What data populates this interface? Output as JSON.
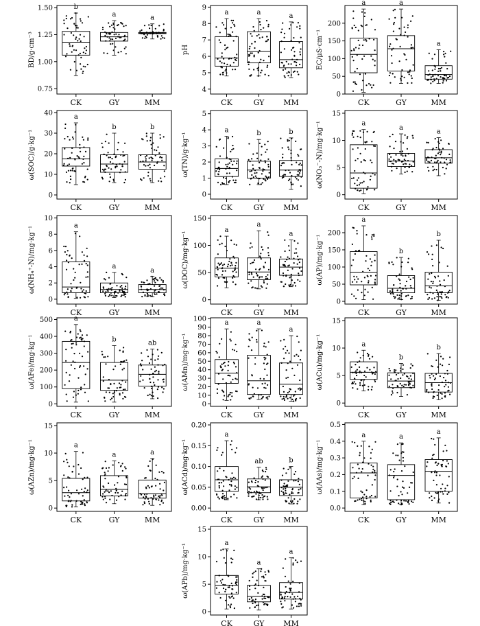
{
  "chart_data": [
    {
      "type": "box",
      "ylabel": "BD/g·cm⁻³",
      "ylim": [
        0.7,
        1.52
      ],
      "yticks": [
        0.75,
        1.0,
        1.25,
        1.5
      ],
      "tick_decimals": 2,
      "categories": [
        "CK",
        "GY",
        "MM"
      ],
      "boxes": [
        {
          "min": 0.87,
          "q1": 1.06,
          "median": 1.18,
          "q3": 1.28,
          "max": 1.45,
          "letter": "b"
        },
        {
          "min": 1.06,
          "q1": 1.19,
          "median": 1.23,
          "q3": 1.27,
          "max": 1.38,
          "letter": "a"
        },
        {
          "min": 1.21,
          "q1": 1.26,
          "median": 1.265,
          "q3": 1.27,
          "max": 1.35,
          "letter": "a"
        }
      ]
    },
    {
      "type": "box",
      "ylabel": "pH",
      "ylim": [
        3.7,
        9.1
      ],
      "yticks": [
        4,
        5,
        6,
        7,
        8,
        9
      ],
      "tick_decimals": 0,
      "categories": [
        "CK",
        "GY",
        "MM"
      ],
      "boxes": [
        {
          "min": 4.8,
          "q1": 5.4,
          "median": 5.9,
          "q3": 7.2,
          "max": 8.3,
          "letter": "a"
        },
        {
          "min": 4.8,
          "q1": 5.6,
          "median": 6.3,
          "q3": 7.5,
          "max": 8.3,
          "letter": "a"
        },
        {
          "min": 4.7,
          "q1": 5.3,
          "median": 5.8,
          "q3": 6.9,
          "max": 8.1,
          "letter": "a"
        }
      ]
    },
    {
      "type": "box",
      "ylabel": "EC/μS·cm⁻¹",
      "ylim": [
        0,
        250
      ],
      "yticks": [
        0,
        50,
        100,
        150,
        200
      ],
      "tick_decimals": 0,
      "categories": [
        "CK",
        "GY",
        "MM"
      ],
      "boxes": [
        {
          "min": 5,
          "q1": 60,
          "median": 112,
          "q3": 158,
          "max": 240,
          "letter": "a"
        },
        {
          "min": 30,
          "q1": 65,
          "median": 128,
          "q3": 165,
          "max": 240,
          "letter": "a"
        },
        {
          "min": 30,
          "q1": 42,
          "median": 55,
          "q3": 80,
          "max": 125,
          "letter": "a"
        }
      ]
    },
    {
      "type": "box",
      "ylabel": "ω(SOC)/g·kg⁻¹",
      "ylim": [
        -2,
        41
      ],
      "yticks": [
        0,
        10,
        20,
        30,
        40
      ],
      "tick_decimals": 0,
      "categories": [
        "CK",
        "GY",
        "MM"
      ],
      "boxes": [
        {
          "min": 5,
          "q1": 14,
          "median": 17.5,
          "q3": 23,
          "max": 35,
          "letter": "a"
        },
        {
          "min": 6,
          "q1": 11,
          "median": 15,
          "q3": 19.5,
          "max": 30,
          "letter": "b"
        },
        {
          "min": 6,
          "q1": 12.5,
          "median": 16,
          "q3": 19.5,
          "max": 30,
          "letter": "b"
        }
      ]
    },
    {
      "type": "box",
      "ylabel": "ω(TN)/g·kg⁻¹",
      "ylim": [
        -0.3,
        5.2
      ],
      "yticks": [
        0,
        1,
        2,
        3,
        4,
        5
      ],
      "tick_decimals": 0,
      "categories": [
        "CK",
        "GY",
        "MM"
      ],
      "boxes": [
        {
          "min": 0.6,
          "q1": 1.1,
          "median": 1.6,
          "q3": 2.2,
          "max": 3.6,
          "letter": "a"
        },
        {
          "min": 0.6,
          "q1": 1.0,
          "median": 1.5,
          "q3": 2.05,
          "max": 3.4,
          "letter": "b"
        },
        {
          "min": 0.3,
          "q1": 1.1,
          "median": 1.5,
          "q3": 2.1,
          "max": 3.5,
          "letter": "b"
        }
      ]
    },
    {
      "type": "box",
      "ylabel": "ω(NO₃⁻-N)/mg·kg⁻¹",
      "ylim": [
        -0.8,
        15.5
      ],
      "yticks": [
        0,
        5,
        10,
        15
      ],
      "tick_decimals": 0,
      "categories": [
        "CK",
        "GY",
        "MM"
      ],
      "boxes": [
        {
          "min": 0.2,
          "q1": 1.2,
          "median": 4,
          "q3": 9.2,
          "max": 12,
          "letter": "a"
        },
        {
          "min": 3.8,
          "q1": 5.2,
          "median": 6.2,
          "q3": 7.6,
          "max": 11.2,
          "letter": "a"
        },
        {
          "min": 3.5,
          "q1": 5.8,
          "median": 6.8,
          "q3": 8.3,
          "max": 10.5,
          "letter": "a"
        }
      ]
    },
    {
      "type": "box",
      "ylabel": "ω(NH₄⁺-N)/mg·kg⁻¹",
      "ylim": [
        -0.6,
        10.3
      ],
      "yticks": [
        0,
        2,
        4,
        6,
        8,
        10
      ],
      "tick_decimals": 0,
      "categories": [
        "CK",
        "GY",
        "MM"
      ],
      "boxes": [
        {
          "min": 0.1,
          "q1": 0.8,
          "median": 1.5,
          "q3": 4.6,
          "max": 8.3,
          "letter": "a"
        },
        {
          "min": 0.2,
          "q1": 0.8,
          "median": 1.2,
          "q3": 2.0,
          "max": 3.3,
          "letter": "a"
        },
        {
          "min": 0.3,
          "q1": 0.8,
          "median": 1.2,
          "q3": 1.8,
          "max": 2.8,
          "letter": "a"
        }
      ]
    },
    {
      "type": "box",
      "ylabel": "ω(DOC)/mg·kg⁻¹",
      "ylim": [
        -8,
        155
      ],
      "yticks": [
        0,
        50,
        100,
        150
      ],
      "tick_decimals": 0,
      "categories": [
        "CK",
        "GY",
        "MM"
      ],
      "boxes": [
        {
          "min": 22,
          "q1": 42,
          "median": 58,
          "q3": 77,
          "max": 117,
          "letter": "a"
        },
        {
          "min": 20,
          "q1": 37,
          "median": 51,
          "q3": 77,
          "max": 127,
          "letter": "a"
        },
        {
          "min": 24,
          "q1": 45,
          "median": 60,
          "q3": 75,
          "max": 110,
          "letter": "a"
        }
      ]
    },
    {
      "type": "box",
      "ylabel": "ω(AP)/mg·kg⁻¹",
      "ylim": [
        -8,
        250
      ],
      "yticks": [
        0,
        50,
        100,
        150,
        200
      ],
      "tick_decimals": 0,
      "categories": [
        "CK",
        "GY",
        "MM"
      ],
      "boxes": [
        {
          "min": 5,
          "q1": 48,
          "median": 85,
          "q3": 145,
          "max": 220,
          "letter": "a"
        },
        {
          "min": 5,
          "q1": 25,
          "median": 38,
          "q3": 75,
          "max": 128,
          "letter": "b"
        },
        {
          "min": 3,
          "q1": 25,
          "median": 45,
          "q3": 85,
          "max": 178,
          "letter": "b"
        }
      ]
    },
    {
      "type": "box",
      "ylabel": "ω(AFe)/mg·kg⁻¹",
      "ylim": [
        -15,
        510
      ],
      "yticks": [
        0,
        100,
        200,
        300,
        400,
        500
      ],
      "tick_decimals": 0,
      "categories": [
        "CK",
        "GY",
        "MM"
      ],
      "boxes": [
        {
          "min": 10,
          "q1": 90,
          "median": 245,
          "q3": 370,
          "max": 470,
          "letter": "a"
        },
        {
          "min": 10,
          "q1": 80,
          "median": 140,
          "q3": 245,
          "max": 345,
          "letter": "b"
        },
        {
          "min": 30,
          "q1": 105,
          "median": 175,
          "q3": 230,
          "max": 325,
          "letter": "ab"
        }
      ]
    },
    {
      "type": "box",
      "ylabel": "ω(AMn)/mg·kg⁻¹",
      "ylim": [
        -3,
        101
      ],
      "yticks": [
        0,
        10,
        20,
        30,
        40,
        50,
        60,
        70,
        80,
        90,
        100
      ],
      "tick_decimals": 0,
      "categories": [
        "CK",
        "GY",
        "MM"
      ],
      "boxes": [
        {
          "min": 4,
          "q1": 24,
          "median": 36,
          "q3": 52,
          "max": 88,
          "letter": "a"
        },
        {
          "min": 5,
          "q1": 11,
          "median": 27,
          "q3": 57,
          "max": 88,
          "letter": "a"
        },
        {
          "min": 3,
          "q1": 11,
          "median": 23,
          "q3": 48,
          "max": 80,
          "letter": "a"
        }
      ]
    },
    {
      "type": "box",
      "ylabel": "ω(ACu)/mg·kg⁻¹",
      "ylim": [
        -0.6,
        15.5
      ],
      "yticks": [
        0,
        5,
        10,
        15
      ],
      "tick_decimals": 0,
      "categories": [
        "CK",
        "GY",
        "MM"
      ],
      "boxes": [
        {
          "min": 2.2,
          "q1": 4.3,
          "median": 5.6,
          "q3": 7.5,
          "max": 9.6,
          "letter": "a"
        },
        {
          "min": 1.2,
          "q1": 2.8,
          "median": 4.0,
          "q3": 5.5,
          "max": 7.2,
          "letter": "b"
        },
        {
          "min": 0.6,
          "q1": 2.0,
          "median": 3.7,
          "q3": 5.4,
          "max": 9.0,
          "letter": "b"
        }
      ]
    },
    {
      "type": "box",
      "ylabel": "ω(AZn)/mg·kg⁻¹",
      "ylim": [
        -0.6,
        15.5
      ],
      "yticks": [
        0,
        5,
        10,
        15
      ],
      "tick_decimals": 0,
      "categories": [
        "CK",
        "GY",
        "MM"
      ],
      "boxes": [
        {
          "min": 0.2,
          "q1": 1.3,
          "median": 2.8,
          "q3": 5.4,
          "max": 10.3,
          "letter": "a"
        },
        {
          "min": 0.8,
          "q1": 2.2,
          "median": 3.4,
          "q3": 5.9,
          "max": 8.6,
          "letter": "a"
        },
        {
          "min": 0.5,
          "q1": 1.8,
          "median": 2.6,
          "q3": 5.1,
          "max": 9.0,
          "letter": "a"
        }
      ]
    },
    {
      "type": "box",
      "ylabel": "ω(ACd)/mg·kg⁻¹",
      "ylim": [
        -0.008,
        0.205
      ],
      "yticks": [
        0,
        0.05,
        0.1,
        0.15,
        0.2
      ],
      "tick_decimals": 2,
      "categories": [
        "CK",
        "GY",
        "MM"
      ],
      "boxes": [
        {
          "min": 0.02,
          "q1": 0.04,
          "median": 0.068,
          "q3": 0.1,
          "max": 0.162,
          "letter": "a"
        },
        {
          "min": 0.02,
          "q1": 0.037,
          "median": 0.051,
          "q3": 0.07,
          "max": 0.098,
          "letter": "ab"
        },
        {
          "min": 0.01,
          "q1": 0.03,
          "median": 0.05,
          "q3": 0.068,
          "max": 0.1,
          "letter": "b"
        }
      ]
    },
    {
      "type": "box",
      "ylabel": "ω(AAs)/mg·kg⁻¹",
      "ylim": [
        -0.02,
        0.51
      ],
      "yticks": [
        0,
        0.1,
        0.2,
        0.3,
        0.4,
        0.5
      ],
      "tick_decimals": 1,
      "categories": [
        "CK",
        "GY",
        "MM"
      ],
      "boxes": [
        {
          "min": 0.02,
          "q1": 0.06,
          "median": 0.21,
          "q3": 0.27,
          "max": 0.4,
          "letter": "a"
        },
        {
          "min": 0.02,
          "q1": 0.05,
          "median": 0.195,
          "q3": 0.26,
          "max": 0.39,
          "letter": "a"
        },
        {
          "min": 0.03,
          "q1": 0.1,
          "median": 0.22,
          "q3": 0.29,
          "max": 0.42,
          "letter": "a"
        }
      ]
    },
    {
      "type": "box",
      "ylabel": "ω(APb)/mg·kg⁻¹",
      "ylim": [
        -0.6,
        15.5
      ],
      "yticks": [
        0,
        5,
        10,
        15
      ],
      "tick_decimals": 0,
      "categories": [
        "CK",
        "GY",
        "MM"
      ],
      "boxes": [
        {
          "min": 0.5,
          "q1": 3.2,
          "median": 4.8,
          "q3": 6.6,
          "max": 11.4,
          "letter": "a"
        },
        {
          "min": 0.3,
          "q1": 1.8,
          "median": 2.8,
          "q3": 4.8,
          "max": 7.8,
          "letter": "a"
        },
        {
          "min": 0.5,
          "q1": 2.3,
          "median": 3.5,
          "q3": 5.3,
          "max": 9.8,
          "letter": "a"
        }
      ]
    }
  ]
}
